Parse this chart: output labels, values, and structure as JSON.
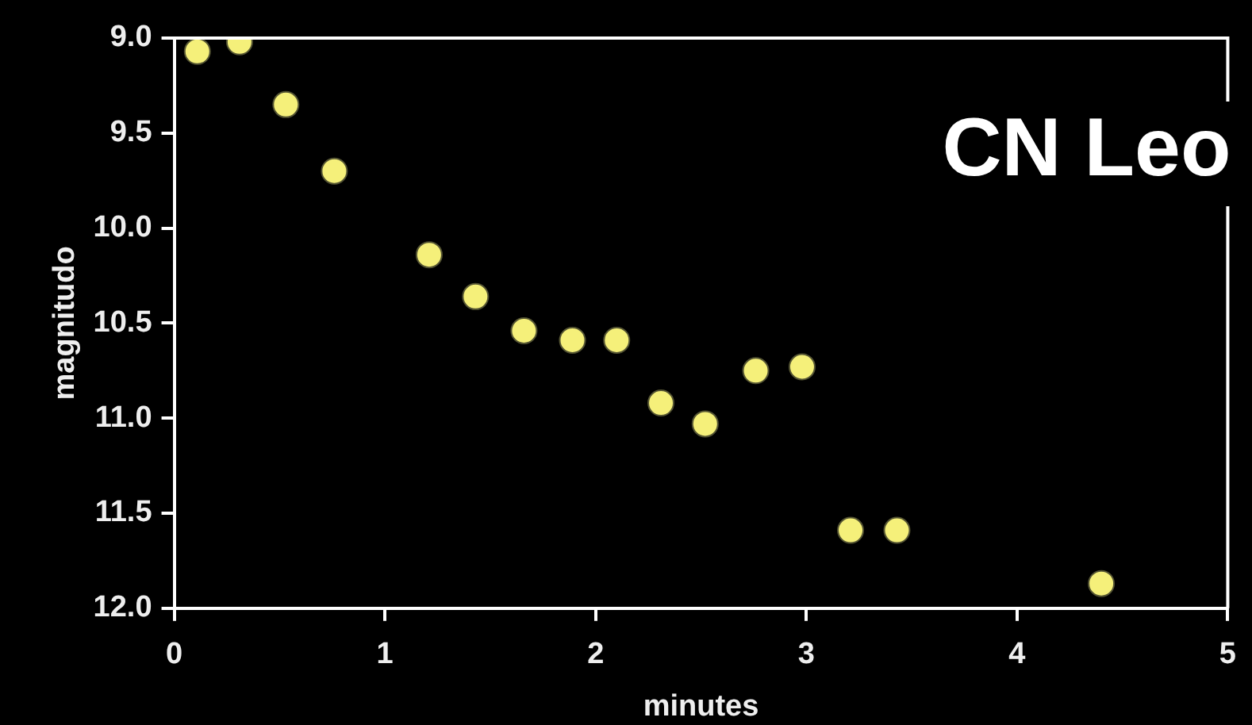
{
  "chart_data": {
    "type": "scatter",
    "title": "CN Leo",
    "xlabel": "minutes",
    "ylabel": "magnitudo",
    "x": [
      0.11,
      0.31,
      0.53,
      0.76,
      1.21,
      1.43,
      1.66,
      1.89,
      2.1,
      2.31,
      2.52,
      2.76,
      2.98,
      3.21,
      3.43,
      4.4
    ],
    "series": [
      {
        "color": "#f5f07a",
        "values": [
          9.07,
          9.02,
          9.35,
          9.7,
          10.14,
          10.36,
          10.54,
          10.59,
          10.59,
          10.92,
          11.03,
          10.75,
          10.73,
          11.59,
          11.59,
          11.87
        ]
      }
    ],
    "xlim": [
      0,
      5
    ],
    "xticks": [
      0,
      1,
      2,
      3,
      4,
      5
    ],
    "ylim": [
      12.0,
      9.0
    ],
    "yticks": [
      {
        "value": 9.0,
        "label": "9.0"
      },
      {
        "value": 9.5,
        "label": "9.5"
      },
      {
        "value": 10.0,
        "label": "10.0"
      },
      {
        "value": 10.5,
        "label": "10.5"
      },
      {
        "value": 11.0,
        "label": "11.0"
      },
      {
        "value": 11.5,
        "label": "11.5"
      },
      {
        "value": 12.0,
        "label": "12.0"
      }
    ],
    "grid": false,
    "legend": false,
    "marker": "circle"
  }
}
